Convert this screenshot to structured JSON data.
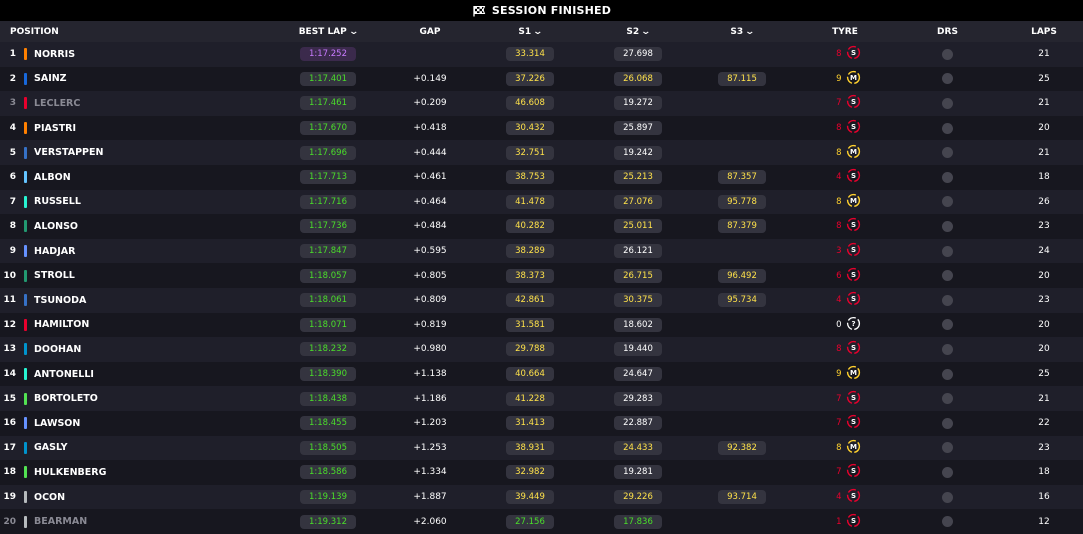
{
  "banner": {
    "label": "SESSION FINISHED"
  },
  "columns": {
    "position": "POSITION",
    "best_lap": "BEST LAP",
    "gap": "GAP",
    "s1": "S1",
    "s2": "S2",
    "s3": "S3",
    "tyre": "TYRE",
    "drs": "DRS",
    "laps": "LAPS"
  },
  "colors": {
    "background": "#15151e",
    "header": "#25252f",
    "pill": "#34343f",
    "personal_best": "#4ade2a",
    "sector_yellow": "#ffe24a",
    "overall_best": "#c87bff",
    "soft_tyre": "#e8002d",
    "medium_tyre": "#ffd12e",
    "drs_off": "#45454f"
  },
  "drivers": [
    {
      "pos": "1",
      "name": "NORRIS",
      "team_color": "#ff8000",
      "best_lap": "1:17.252",
      "best_lap_class": "purple",
      "gap": "",
      "s1": "33.314",
      "s1_class": "yellow",
      "s2": "27.698",
      "s2_class": "white",
      "s3": "",
      "s3_class": "",
      "tyre_age": "8",
      "tyre": "S",
      "laps": "21"
    },
    {
      "pos": "2",
      "name": "SAINZ",
      "team_color": "#1868db",
      "best_lap": "1:17.401",
      "best_lap_class": "green",
      "gap": "+0.149",
      "s1": "37.226",
      "s1_class": "yellow",
      "s2": "26.068",
      "s2_class": "yellow",
      "s3": "87.115",
      "s3_class": "yellow",
      "tyre_age": "9",
      "tyre": "M",
      "laps": "25"
    },
    {
      "pos": "3",
      "name": "LECLERC",
      "team_color": "#e8002d",
      "best_lap": "1:17.461",
      "best_lap_class": "green",
      "gap": "+0.209",
      "s1": "46.608",
      "s1_class": "yellow",
      "s2": "19.272",
      "s2_class": "white",
      "s3": "",
      "s3_class": "",
      "tyre_age": "7",
      "tyre": "S",
      "laps": "21",
      "faded": true
    },
    {
      "pos": "4",
      "name": "PIASTRI",
      "team_color": "#ff8000",
      "best_lap": "1:17.670",
      "best_lap_class": "green",
      "gap": "+0.418",
      "s1": "30.432",
      "s1_class": "yellow",
      "s2": "25.897",
      "s2_class": "white",
      "s3": "",
      "s3_class": "",
      "tyre_age": "8",
      "tyre": "S",
      "laps": "20"
    },
    {
      "pos": "5",
      "name": "VERSTAPPEN",
      "team_color": "#3671c6",
      "best_lap": "1:17.696",
      "best_lap_class": "green",
      "gap": "+0.444",
      "s1": "32.751",
      "s1_class": "yellow",
      "s2": "19.242",
      "s2_class": "white",
      "s3": "",
      "s3_class": "",
      "tyre_age": "8",
      "tyre": "M",
      "laps": "21"
    },
    {
      "pos": "6",
      "name": "ALBON",
      "team_color": "#64c4ff",
      "best_lap": "1:17.713",
      "best_lap_class": "green",
      "gap": "+0.461",
      "s1": "38.753",
      "s1_class": "yellow",
      "s2": "25.213",
      "s2_class": "yellow",
      "s3": "87.357",
      "s3_class": "yellow",
      "tyre_age": "4",
      "tyre": "S",
      "laps": "18"
    },
    {
      "pos": "7",
      "name": "RUSSELL",
      "team_color": "#27f4d2",
      "best_lap": "1:17.716",
      "best_lap_class": "green",
      "gap": "+0.464",
      "s1": "41.478",
      "s1_class": "yellow",
      "s2": "27.076",
      "s2_class": "yellow",
      "s3": "95.778",
      "s3_class": "yellow",
      "tyre_age": "8",
      "tyre": "M",
      "laps": "26"
    },
    {
      "pos": "8",
      "name": "ALONSO",
      "team_color": "#229971",
      "best_lap": "1:17.736",
      "best_lap_class": "green",
      "gap": "+0.484",
      "s1": "40.282",
      "s1_class": "yellow",
      "s2": "25.011",
      "s2_class": "yellow",
      "s3": "87.379",
      "s3_class": "yellow",
      "tyre_age": "8",
      "tyre": "S",
      "laps": "23"
    },
    {
      "pos": "9",
      "name": "HADJAR",
      "team_color": "#6692ff",
      "best_lap": "1:17.847",
      "best_lap_class": "green",
      "gap": "+0.595",
      "s1": "38.289",
      "s1_class": "yellow",
      "s2": "26.121",
      "s2_class": "white",
      "s3": "",
      "s3_class": "",
      "tyre_age": "3",
      "tyre": "S",
      "laps": "24"
    },
    {
      "pos": "10",
      "name": "STROLL",
      "team_color": "#229971",
      "best_lap": "1:18.057",
      "best_lap_class": "green",
      "gap": "+0.805",
      "s1": "38.373",
      "s1_class": "yellow",
      "s2": "26.715",
      "s2_class": "yellow",
      "s3": "96.492",
      "s3_class": "yellow",
      "tyre_age": "6",
      "tyre": "S",
      "laps": "20"
    },
    {
      "pos": "11",
      "name": "TSUNODA",
      "team_color": "#3671c6",
      "best_lap": "1:18.061",
      "best_lap_class": "green",
      "gap": "+0.809",
      "s1": "42.861",
      "s1_class": "yellow",
      "s2": "30.375",
      "s2_class": "yellow",
      "s3": "95.734",
      "s3_class": "yellow",
      "tyre_age": "4",
      "tyre": "S",
      "laps": "23"
    },
    {
      "pos": "12",
      "name": "HAMILTON",
      "team_color": "#e8002d",
      "best_lap": "1:18.071",
      "best_lap_class": "green",
      "gap": "+0.819",
      "s1": "31.581",
      "s1_class": "yellow",
      "s2": "18.602",
      "s2_class": "white",
      "s3": "",
      "s3_class": "",
      "tyre_age": "0",
      "tyre": "?",
      "laps": "20"
    },
    {
      "pos": "13",
      "name": "DOOHAN",
      "team_color": "#0093cc",
      "best_lap": "1:18.232",
      "best_lap_class": "green",
      "gap": "+0.980",
      "s1": "29.788",
      "s1_class": "yellow",
      "s2": "19.440",
      "s2_class": "white",
      "s3": "",
      "s3_class": "",
      "tyre_age": "8",
      "tyre": "S",
      "laps": "20"
    },
    {
      "pos": "14",
      "name": "ANTONELLI",
      "team_color": "#27f4d2",
      "best_lap": "1:18.390",
      "best_lap_class": "green",
      "gap": "+1.138",
      "s1": "40.664",
      "s1_class": "yellow",
      "s2": "24.647",
      "s2_class": "white",
      "s3": "",
      "s3_class": "",
      "tyre_age": "9",
      "tyre": "M",
      "laps": "25"
    },
    {
      "pos": "15",
      "name": "BORTOLETO",
      "team_color": "#52e252",
      "best_lap": "1:18.438",
      "best_lap_class": "green",
      "gap": "+1.186",
      "s1": "41.228",
      "s1_class": "yellow",
      "s2": "29.283",
      "s2_class": "white",
      "s3": "",
      "s3_class": "",
      "tyre_age": "7",
      "tyre": "S",
      "laps": "21"
    },
    {
      "pos": "16",
      "name": "LAWSON",
      "team_color": "#6692ff",
      "best_lap": "1:18.455",
      "best_lap_class": "green",
      "gap": "+1.203",
      "s1": "31.413",
      "s1_class": "yellow",
      "s2": "22.887",
      "s2_class": "white",
      "s3": "",
      "s3_class": "",
      "tyre_age": "7",
      "tyre": "S",
      "laps": "22"
    },
    {
      "pos": "17",
      "name": "GASLY",
      "team_color": "#0093cc",
      "best_lap": "1:18.505",
      "best_lap_class": "green",
      "gap": "+1.253",
      "s1": "38.931",
      "s1_class": "yellow",
      "s2": "24.433",
      "s2_class": "yellow",
      "s3": "92.382",
      "s3_class": "yellow",
      "tyre_age": "8",
      "tyre": "M",
      "laps": "23"
    },
    {
      "pos": "18",
      "name": "HULKENBERG",
      "team_color": "#52e252",
      "best_lap": "1:18.586",
      "best_lap_class": "green",
      "gap": "+1.334",
      "s1": "32.982",
      "s1_class": "yellow",
      "s2": "19.281",
      "s2_class": "white",
      "s3": "",
      "s3_class": "",
      "tyre_age": "7",
      "tyre": "S",
      "laps": "18"
    },
    {
      "pos": "19",
      "name": "OCON",
      "team_color": "#b6babd",
      "best_lap": "1:19.139",
      "best_lap_class": "green",
      "gap": "+1.887",
      "s1": "39.449",
      "s1_class": "yellow",
      "s2": "29.226",
      "s2_class": "yellow",
      "s3": "93.714",
      "s3_class": "yellow",
      "tyre_age": "4",
      "tyre": "S",
      "laps": "16"
    },
    {
      "pos": "20",
      "name": "BEARMAN",
      "team_color": "#b6babd",
      "best_lap": "1:19.312",
      "best_lap_class": "green",
      "gap": "+2.060",
      "s1": "27.156",
      "s1_class": "green",
      "s2": "17.836",
      "s2_class": "green",
      "s3": "",
      "s3_class": "",
      "tyre_age": "1",
      "tyre": "S",
      "laps": "12",
      "faded": true
    }
  ]
}
